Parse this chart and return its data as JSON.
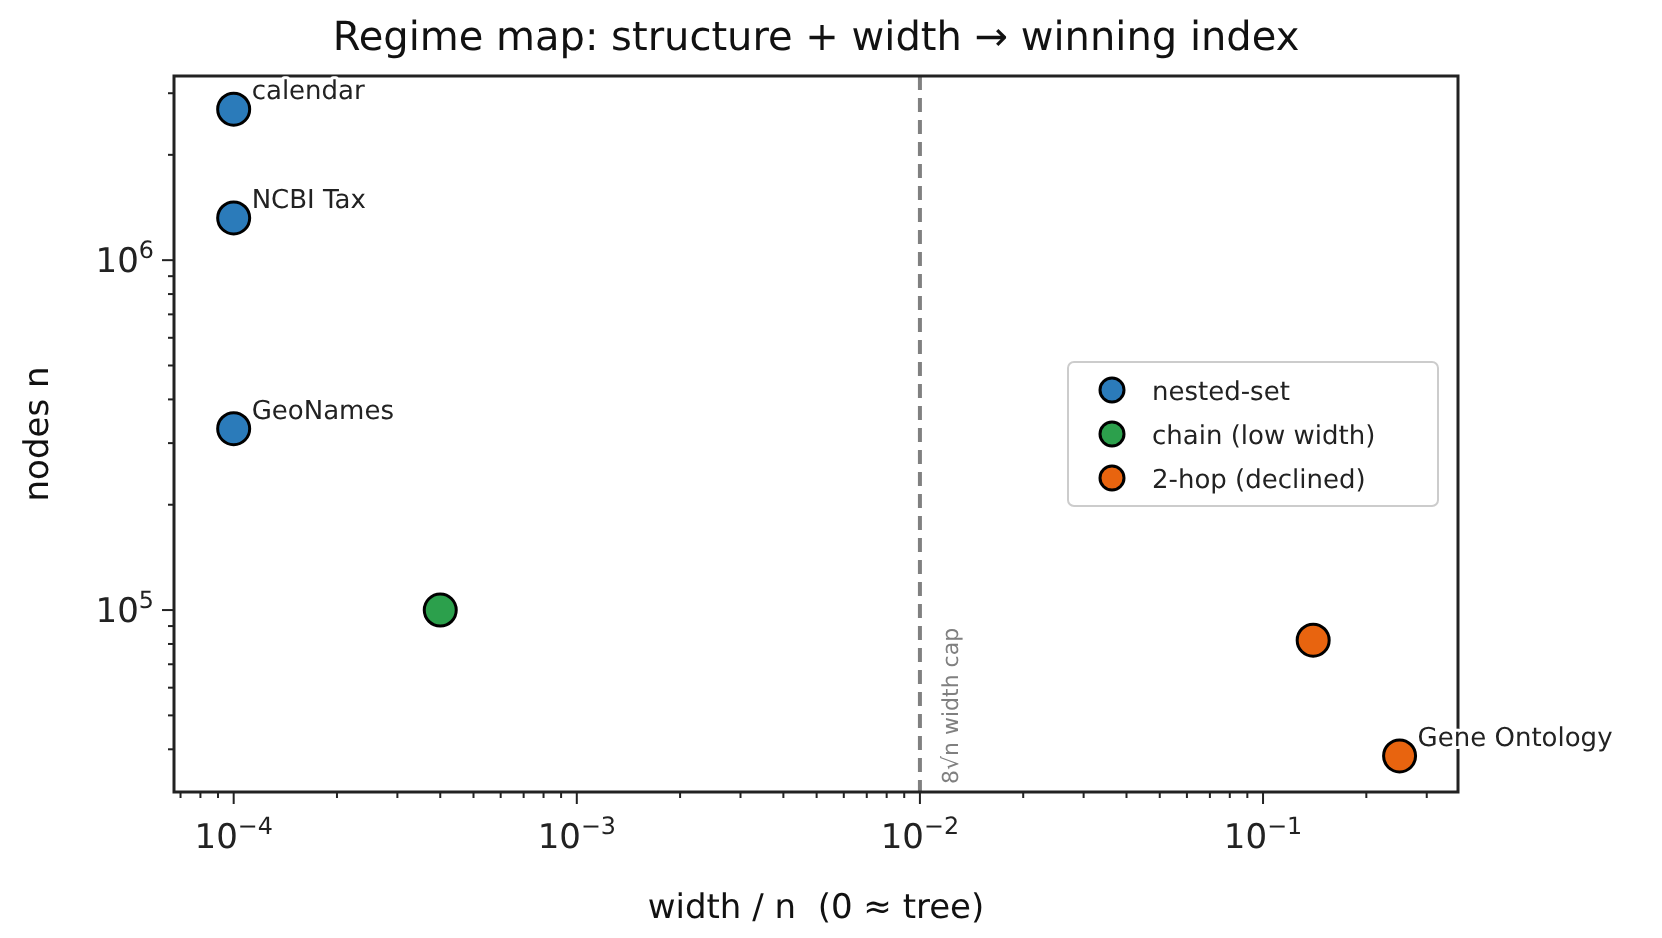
{
  "chart_data": {
    "type": "scatter",
    "title": "Regime map: structure + width → winning index",
    "xlabel": "width / n  (0 ≈ tree)",
    "ylabel": "nodes n",
    "log": "xy",
    "marker": "circle",
    "legend": "right",
    "grid": false,
    "xlim": [
      6.7e-05,
      0.37
    ],
    "ylim": [
      30200,
      3360000
    ],
    "xticks": [
      {
        "value": 0.0001,
        "label": "10$^{−4}$"
      },
      {
        "value": 0.001,
        "label": "10$^{−3}$"
      },
      {
        "value": 0.01,
        "label": "10$^{−2}$"
      },
      {
        "value": 0.1,
        "label": "10$^{−1}$"
      },
      {
        "value": 7e-05,
        "label": null
      },
      {
        "value": 8e-05,
        "label": null
      },
      {
        "value": 9e-05,
        "label": null
      },
      {
        "value": 0.0002,
        "label": null
      },
      {
        "value": 0.0003,
        "label": null
      },
      {
        "value": 0.0004,
        "label": null
      },
      {
        "value": 0.0005,
        "label": null
      },
      {
        "value": 0.0006,
        "label": null
      },
      {
        "value": 0.0007,
        "label": null
      },
      {
        "value": 0.0008,
        "label": null
      },
      {
        "value": 0.0009,
        "label": null
      },
      {
        "value": 0.002,
        "label": null
      },
      {
        "value": 0.003,
        "label": null
      },
      {
        "value": 0.004,
        "label": null
      },
      {
        "value": 0.005,
        "label": null
      },
      {
        "value": 0.006,
        "label": null
      },
      {
        "value": 0.007,
        "label": null
      },
      {
        "value": 0.008,
        "label": null
      },
      {
        "value": 0.009,
        "label": null
      },
      {
        "value": 0.02,
        "label": null
      },
      {
        "value": 0.03,
        "label": null
      },
      {
        "value": 0.04,
        "label": null
      },
      {
        "value": 0.05,
        "label": null
      },
      {
        "value": 0.06,
        "label": null
      },
      {
        "value": 0.07,
        "label": null
      },
      {
        "value": 0.08,
        "label": null
      },
      {
        "value": 0.09,
        "label": null
      },
      {
        "value": 0.2,
        "label": null
      },
      {
        "value": 0.3,
        "label": null
      }
    ],
    "yticks": [
      {
        "value": 100000,
        "label": "10$^{5}$"
      },
      {
        "value": 1000000,
        "label": "10$^{6}$"
      },
      {
        "value": 40000,
        "label": null
      },
      {
        "value": 50000,
        "label": null
      },
      {
        "value": 60000,
        "label": null
      },
      {
        "value": 70000,
        "label": null
      },
      {
        "value": 80000,
        "label": null
      },
      {
        "value": 90000,
        "label": null
      },
      {
        "value": 200000,
        "label": null
      },
      {
        "value": 300000,
        "label": null
      },
      {
        "value": 400000,
        "label": null
      },
      {
        "value": 500000,
        "label": null
      },
      {
        "value": 600000,
        "label": null
      },
      {
        "value": 700000,
        "label": null
      },
      {
        "value": 800000,
        "label": null
      },
      {
        "value": 900000,
        "label": null
      },
      {
        "value": 2000000,
        "label": null
      },
      {
        "value": 3000000,
        "label": null
      }
    ],
    "series": [
      {
        "name": "nested-set",
        "color": "#2b7bba",
        "x": [
          0.0001,
          0.0001,
          0.0001
        ],
        "values": [
          2700000,
          1320000,
          330000
        ],
        "value_labels": [
          "calendar",
          "NCBI Tax",
          "GeoNames"
        ]
      },
      {
        "name": "chain (low width)",
        "color": "#2ca04c",
        "x": [
          0.0004
        ],
        "values": [
          100000
        ],
        "value_labels": [
          null
        ]
      },
      {
        "name": "2-hop (declined)",
        "color": "#e8640f",
        "x": [
          0.14,
          0.25
        ],
        "values": [
          82000,
          38300
        ],
        "value_labels": [
          null,
          "Gene Ontology"
        ]
      }
    ],
    "ref_lines": [
      {
        "axis": "x",
        "value": 0.01,
        "label": "8√n width cap",
        "color": "#808080",
        "line_style": "dashed"
      }
    ]
  }
}
